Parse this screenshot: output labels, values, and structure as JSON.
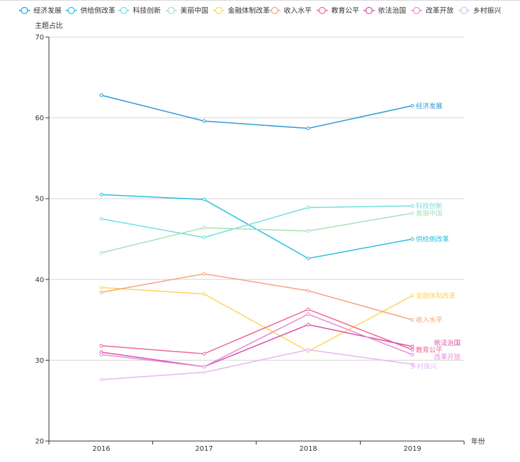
{
  "chart_data": {
    "type": "line",
    "categories": [
      "2016",
      "2017",
      "2018",
      "2019"
    ],
    "xlabel": "年份",
    "ylabel": "主题占比",
    "ylim": [
      20,
      70
    ],
    "yticks": [
      20,
      30,
      40,
      50,
      60,
      70
    ],
    "grid": true,
    "legend_position": "top",
    "series": [
      {
        "name": "经济发展",
        "color": "#2e9bd6",
        "values": [
          62.8,
          59.6,
          58.7,
          61.5
        ]
      },
      {
        "name": "供给侧改革",
        "color": "#22c1e0",
        "values": [
          50.5,
          49.9,
          42.6,
          45.0
        ]
      },
      {
        "name": "科技创新",
        "color": "#6edfe0",
        "values": [
          47.5,
          45.2,
          48.9,
          49.1
        ]
      },
      {
        "name": "美丽中国",
        "color": "#a3e2b6",
        "values": [
          43.3,
          46.4,
          46.0,
          48.2
        ]
      },
      {
        "name": "金融体制改革",
        "color": "#ffd35c",
        "values": [
          39.0,
          38.2,
          31.1,
          38.0
        ]
      },
      {
        "name": "收入水平",
        "color": "#f7a27a",
        "values": [
          38.4,
          40.7,
          38.6,
          35.0
        ]
      },
      {
        "name": "教育公平",
        "color": "#f0698e",
        "values": [
          31.8,
          30.8,
          36.3,
          31.3
        ]
      },
      {
        "name": "依法治国",
        "color": "#d84fa8",
        "values": [
          31.0,
          29.2,
          34.4,
          31.7
        ]
      },
      {
        "name": "改革开放",
        "color": "#e48cd6",
        "values": [
          30.7,
          29.2,
          35.7,
          30.7
        ]
      },
      {
        "name": "乡村振兴",
        "color": "#e6b8ef",
        "values": [
          27.6,
          28.5,
          31.3,
          29.5
        ]
      }
    ]
  }
}
